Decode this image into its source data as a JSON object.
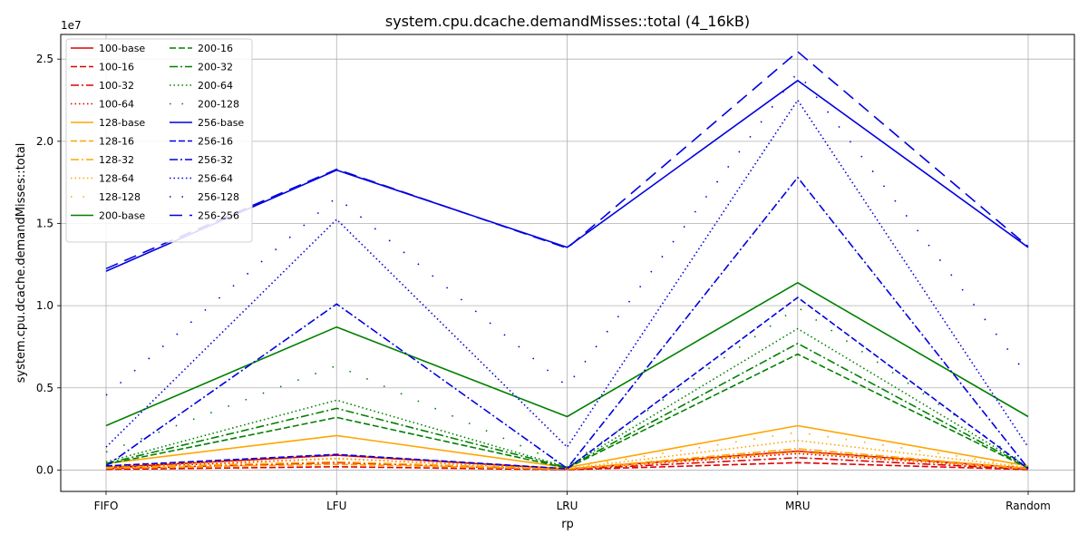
{
  "chart_data": {
    "type": "line",
    "title": "system.cpu.dcache.demandMisses::total (4_16kB)",
    "xlabel": "rp",
    "ylabel": "system.cpu.dcache.demandMisses::total",
    "y_offset_text": "1e7",
    "categories": [
      "FIFO",
      "LFU",
      "LRU",
      "MRU",
      "Random"
    ],
    "ylim": [
      -1300000,
      26500000
    ],
    "yticks": [
      0,
      5000000,
      10000000,
      15000000,
      20000000,
      25000000
    ],
    "ytick_labels": [
      "0.0",
      "0.5",
      "1.0",
      "1.5",
      "2.0",
      "2.5"
    ],
    "grid": true,
    "legend_position": "top-left",
    "series": [
      {
        "name": "100-base",
        "color": "#e00000",
        "style": "solid",
        "values": [
          150000,
          900000,
          60000,
          1150000,
          100000
        ]
      },
      {
        "name": "100-16",
        "color": "#e00000",
        "style": "dashed",
        "values": [
          40000,
          200000,
          20000,
          450000,
          30000
        ]
      },
      {
        "name": "100-32",
        "color": "#e00000",
        "style": "dashdot",
        "values": [
          80000,
          450000,
          30000,
          750000,
          50000
        ]
      },
      {
        "name": "100-64",
        "color": "#e00000",
        "style": "dotted",
        "values": [
          120000,
          700000,
          50000,
          1000000,
          80000
        ]
      },
      {
        "name": "128-base",
        "color": "#ffa500",
        "style": "solid",
        "values": [
          400000,
          2100000,
          150000,
          2700000,
          250000
        ]
      },
      {
        "name": "128-16",
        "color": "#ffa500",
        "style": "dashed",
        "values": [
          100000,
          350000,
          50000,
          1100000,
          80000
        ]
      },
      {
        "name": "128-32",
        "color": "#ffa500",
        "style": "dashdot",
        "values": [
          150000,
          500000,
          60000,
          1300000,
          100000
        ]
      },
      {
        "name": "128-64",
        "color": "#ffa500",
        "style": "dotted",
        "values": [
          250000,
          700000,
          80000,
          1800000,
          150000
        ]
      },
      {
        "name": "128-128",
        "color": "#ffa500",
        "style": "sparse",
        "values": [
          300000,
          900000,
          100000,
          2300000,
          200000
        ]
      },
      {
        "name": "200-base",
        "color": "#008000",
        "style": "solid",
        "values": [
          2700000,
          8700000,
          3250000,
          11400000,
          3250000
        ]
      },
      {
        "name": "200-16",
        "color": "#008000",
        "style": "dashed",
        "values": [
          350000,
          3200000,
          120000,
          7050000,
          120000
        ]
      },
      {
        "name": "200-32",
        "color": "#008000",
        "style": "dashdot",
        "values": [
          400000,
          3750000,
          150000,
          7700000,
          150000
        ]
      },
      {
        "name": "200-64",
        "color": "#008000",
        "style": "dotted",
        "values": [
          500000,
          4250000,
          180000,
          8600000,
          180000
        ]
      },
      {
        "name": "200-128",
        "color": "#008000",
        "style": "sparse",
        "values": [
          1100000,
          6350000,
          250000,
          9900000,
          250000
        ]
      },
      {
        "name": "256-base",
        "color": "#0000e0",
        "style": "solid",
        "values": [
          12100000,
          18250000,
          13550000,
          23700000,
          13550000
        ]
      },
      {
        "name": "256-16",
        "color": "#0000e0",
        "style": "dashed",
        "values": [
          250000,
          950000,
          80000,
          10500000,
          80000
        ]
      },
      {
        "name": "256-32",
        "color": "#0000e0",
        "style": "dashdot",
        "values": [
          250000,
          10100000,
          100000,
          17800000,
          100000
        ]
      },
      {
        "name": "256-64",
        "color": "#0000e0",
        "style": "dotted",
        "values": [
          1400000,
          15250000,
          1400000,
          22500000,
          1400000
        ]
      },
      {
        "name": "256-128",
        "color": "#0000e0",
        "style": "sparse",
        "values": [
          4550000,
          16600000,
          5100000,
          24200000,
          5700000
        ]
      },
      {
        "name": "256-256",
        "color": "#0000e0",
        "style": "longdash",
        "values": [
          12250000,
          18300000,
          13500000,
          25450000,
          13600000
        ]
      }
    ]
  }
}
